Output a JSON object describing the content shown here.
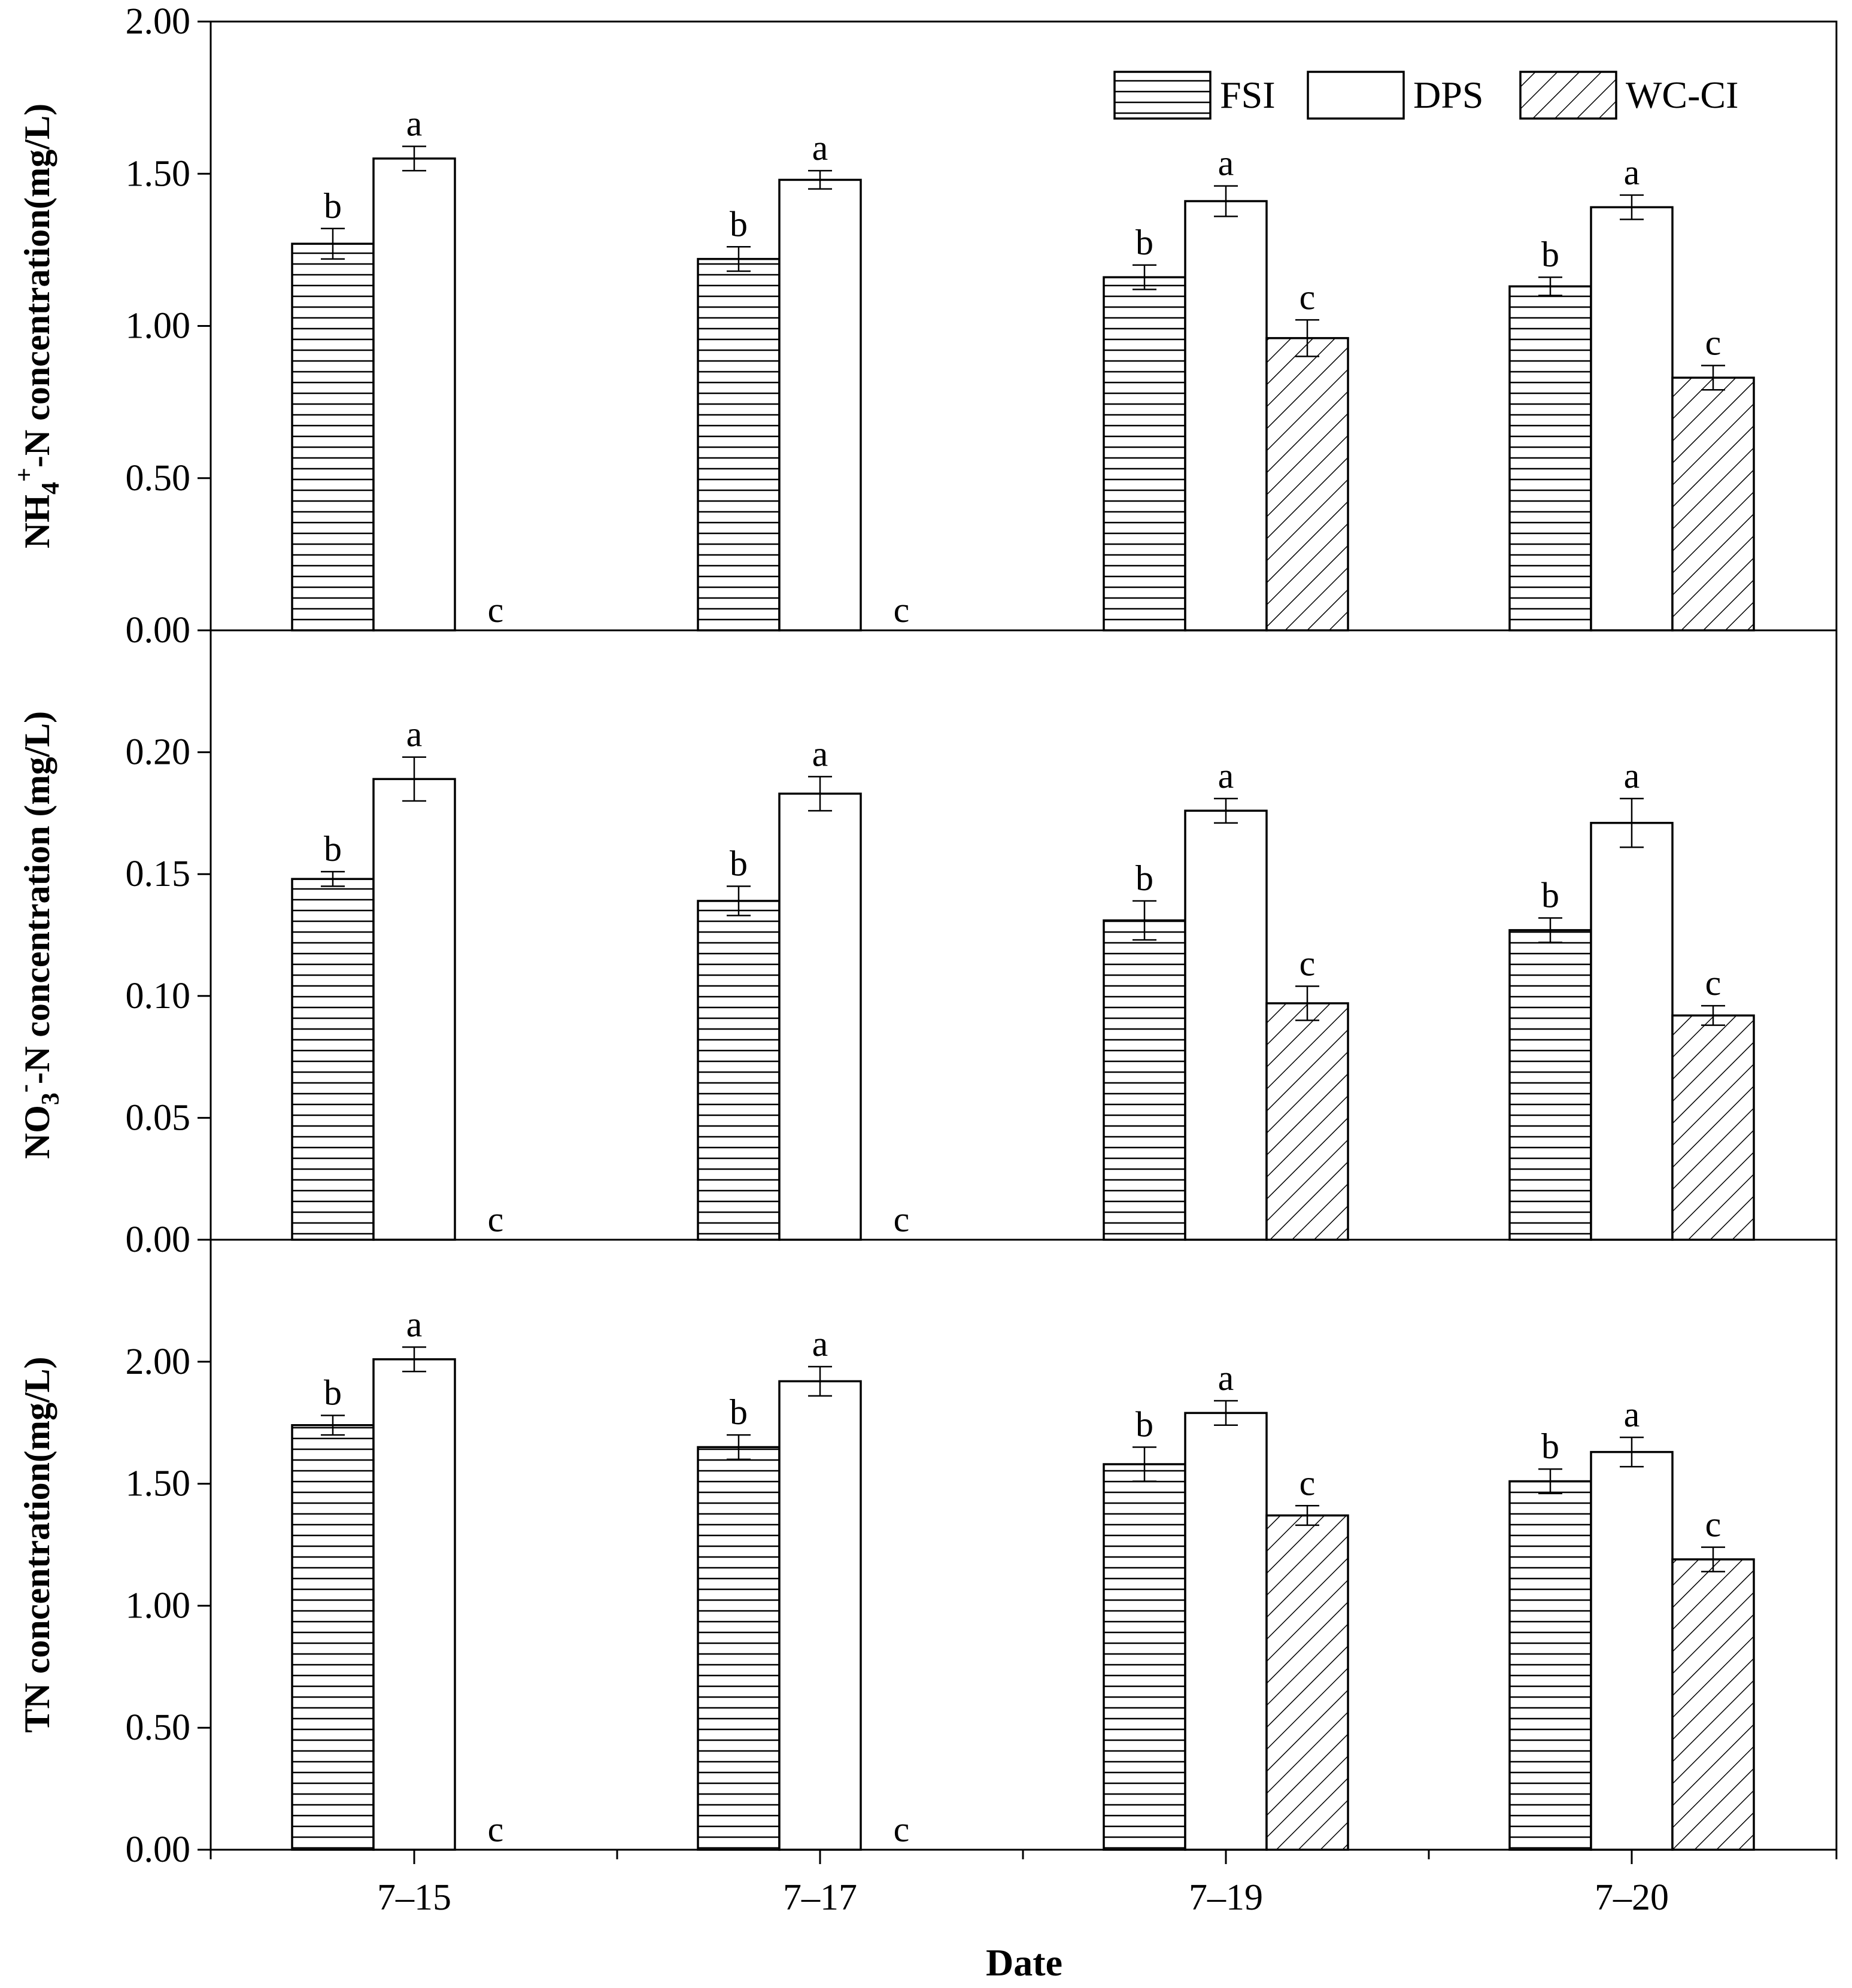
{
  "chart_data": [
    {
      "type": "bar",
      "categories": [
        "7–15",
        "7–17",
        "7–19",
        "7–20"
      ],
      "ylabel_main": "NH",
      "ylabel_sub": "4",
      "ylabel_sup": "+",
      "ylabel_rest": "-N concentration(mg/L)",
      "ylim": [
        0,
        2.0
      ],
      "yticks": [
        "0.00",
        "0.50",
        "1.00",
        "1.50",
        "2.00"
      ],
      "ytick_values": [
        0,
        0.5,
        1.0,
        1.5,
        2.0
      ],
      "series": [
        {
          "name": "FSI",
          "values": [
            1.27,
            1.22,
            1.16,
            1.13
          ],
          "errors": [
            0.05,
            0.04,
            0.04,
            0.03
          ],
          "letters": [
            "b",
            "b",
            "b",
            "b"
          ]
        },
        {
          "name": "DPS",
          "values": [
            1.55,
            1.48,
            1.41,
            1.39
          ],
          "errors": [
            0.04,
            0.03,
            0.05,
            0.04
          ],
          "letters": [
            "a",
            "a",
            "a",
            "a"
          ]
        },
        {
          "name": "WC-CI",
          "values": [
            0,
            0,
            0.96,
            0.83
          ],
          "errors": [
            0,
            0,
            0.06,
            0.04
          ],
          "letters": [
            "c",
            "c",
            "c",
            "c"
          ]
        }
      ]
    },
    {
      "type": "bar",
      "categories": [
        "7–15",
        "7–17",
        "7–19",
        "7–20"
      ],
      "ylabel_main": "NO",
      "ylabel_sub": "3",
      "ylabel_sup": "-",
      "ylabel_rest": "-N concentration (mg/L)",
      "ylim": [
        0,
        0.25
      ],
      "yticks": [
        "0.00",
        "0.05",
        "0.10",
        "0.15",
        "0.20"
      ],
      "ytick_values": [
        0,
        0.05,
        0.1,
        0.15,
        0.2
      ],
      "series": [
        {
          "name": "FSI",
          "values": [
            0.148,
            0.139,
            0.131,
            0.127
          ],
          "errors": [
            0.003,
            0.006,
            0.008,
            0.005
          ],
          "letters": [
            "b",
            "b",
            "b",
            "b"
          ]
        },
        {
          "name": "DPS",
          "values": [
            0.189,
            0.183,
            0.176,
            0.171
          ],
          "errors": [
            0.009,
            0.007,
            0.005,
            0.01
          ],
          "letters": [
            "a",
            "a",
            "a",
            "a"
          ]
        },
        {
          "name": "WC-CI",
          "values": [
            0,
            0,
            0.097,
            0.092
          ],
          "errors": [
            0,
            0,
            0.007,
            0.004
          ],
          "letters": [
            "c",
            "c",
            "c",
            "c"
          ]
        }
      ]
    },
    {
      "type": "bar",
      "categories": [
        "7–15",
        "7–17",
        "7–19",
        "7–20"
      ],
      "ylabel_main": "TN concentration(mg/L)",
      "ylabel_sub": "",
      "ylabel_sup": "",
      "ylabel_rest": "",
      "xlabel": "Date",
      "ylim": [
        0,
        2.5
      ],
      "yticks": [
        "0.00",
        "0.50",
        "1.00",
        "1.50",
        "2.00"
      ],
      "ytick_values": [
        0,
        0.5,
        1.0,
        1.5,
        2.0
      ],
      "series": [
        {
          "name": "FSI",
          "values": [
            1.74,
            1.65,
            1.58,
            1.51
          ],
          "errors": [
            0.04,
            0.05,
            0.07,
            0.05
          ],
          "letters": [
            "b",
            "b",
            "b",
            "b"
          ]
        },
        {
          "name": "DPS",
          "values": [
            2.01,
            1.92,
            1.79,
            1.63
          ],
          "errors": [
            0.05,
            0.06,
            0.05,
            0.06
          ],
          "letters": [
            "a",
            "a",
            "a",
            "a"
          ]
        },
        {
          "name": "WC-CI",
          "values": [
            0,
            0,
            1.37,
            1.19
          ],
          "errors": [
            0,
            0,
            0.04,
            0.05
          ],
          "letters": [
            "c",
            "c",
            "c",
            "c"
          ]
        }
      ]
    }
  ],
  "legend": {
    "items": [
      {
        "name": "FSI",
        "pattern": "horizontal-lines"
      },
      {
        "name": "DPS",
        "pattern": "white"
      },
      {
        "name": "WC-CI",
        "pattern": "diagonal-lines"
      }
    ],
    "placement": "top-right"
  },
  "xlabel": "Date"
}
